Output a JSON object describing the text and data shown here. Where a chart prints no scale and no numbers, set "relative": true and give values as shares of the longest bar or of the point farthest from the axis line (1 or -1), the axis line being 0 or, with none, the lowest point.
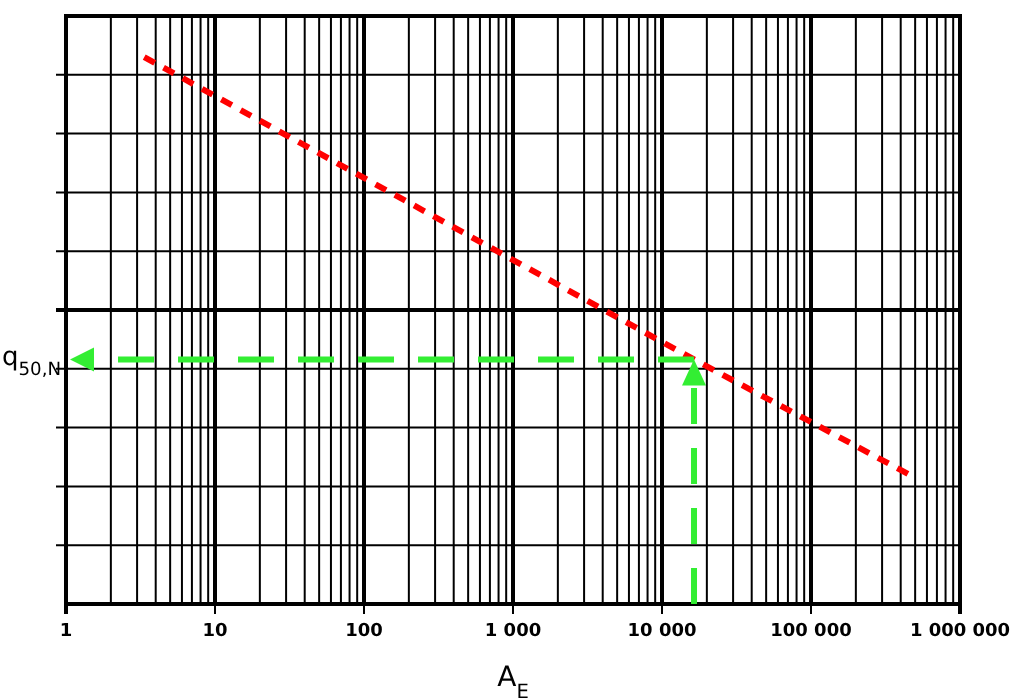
{
  "chart_data": {
    "type": "line",
    "xlabel": "A$_{E}$",
    "ylabel": "q$_{50,N}$",
    "relative": true,
    "log": "x",
    "xlim": [
      1,
      1000000
    ],
    "xticks": [
      1,
      10,
      100,
      {
        "value": 1000,
        "label": "1 000"
      },
      {
        "value": 10000,
        "label": "10 000"
      },
      {
        "value": 100000,
        "label": "100 000"
      },
      {
        "value": 1000000,
        "label": "1 000 000"
      }
    ],
    "grid": true,
    "marker": "none",
    "line_style": "dashed",
    "series": [
      {
        "color": "#ff0000",
        "x": [
          3.35,
          16400,
          454000
        ],
        "values": [
          1,
          0.447,
          0.237
        ]
      }
    ],
    "ref_lines": [
      {
        "axis": "x",
        "value": 16400,
        "color": "#33ee33",
        "line_style": "dashed"
      },
      {
        "axis": "y",
        "value": 0.447,
        "color": "#33ee33",
        "line_style": "dashed"
      }
    ]
  }
}
